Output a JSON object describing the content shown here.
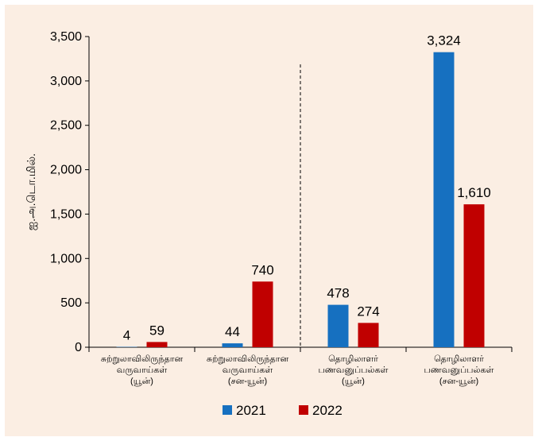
{
  "chart_data": {
    "type": "bar",
    "ylabel": "ஐ.அ.டொ.மில்.",
    "ylim": [
      0,
      3500
    ],
    "yticks": [
      0,
      500,
      1000,
      1500,
      2000,
      2500,
      3000,
      3500
    ],
    "ytick_labels": [
      "0",
      "500",
      "1,000",
      "1,500",
      "2,000",
      "2,500",
      "3,000",
      "3,500"
    ],
    "categories": [
      [
        "சுற்றுலாவிலிருந்தான",
        "வருவாய்கள்",
        "(யூன்)"
      ],
      [
        "சுற்றுலாவிலிருந்தான",
        "வருவாய்கள்",
        "(சன-யூன்)"
      ],
      [
        "தொழிலாளர்",
        "பணவனுப்பல்கள்",
        "(யூன்)"
      ],
      [
        "தொழிலாளர்",
        "பணவனுப்பல்கள்",
        "(சன-யூன்)"
      ]
    ],
    "series": [
      {
        "name": "2021",
        "color": "#1670c0",
        "values": [
          4,
          44,
          478,
          3324
        ],
        "labels": [
          "4",
          "44",
          "478",
          "3,324"
        ]
      },
      {
        "name": "2022",
        "color": "#c00000",
        "values": [
          59,
          740,
          274,
          1610
        ],
        "labels": [
          "59",
          "740",
          "274",
          "1,610"
        ]
      }
    ],
    "grid": false,
    "legend": "bottom",
    "separator_after_category": 1
  }
}
